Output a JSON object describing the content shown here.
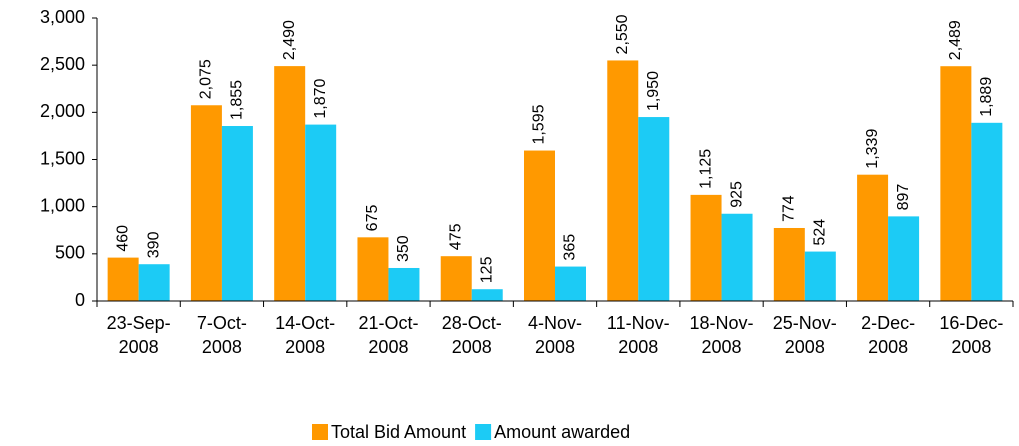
{
  "chart_data": {
    "type": "bar",
    "categories": [
      "23-Sep-2008",
      "7-Oct-2008",
      "14-Oct-2008",
      "21-Oct-2008",
      "28-Oct-2008",
      "4-Nov-2008",
      "11-Nov-2008",
      "18-Nov-2008",
      "25-Nov-2008",
      "2-Dec-2008",
      "16-Dec-2008"
    ],
    "series": [
      {
        "name": "Total Bid Amount",
        "color": "#ff9900",
        "values": [
          460,
          2075,
          2490,
          675,
          475,
          1595,
          2550,
          1125,
          774,
          1339,
          2489
        ],
        "value_labels": [
          "460",
          "2,075",
          "2,490",
          "675",
          "475",
          "1,595",
          "2,550",
          "1,125",
          "774",
          "1,339",
          "2,489"
        ]
      },
      {
        "name": "Amount awarded",
        "color": "#1ccbf5",
        "values": [
          390,
          1855,
          1870,
          350,
          125,
          365,
          1950,
          925,
          524,
          897,
          1889
        ],
        "value_labels": [
          "390",
          "1,855",
          "1,870",
          "350",
          "125",
          "365",
          "1,950",
          "925",
          "524",
          "897",
          "1,889"
        ]
      }
    ],
    "ylim": [
      0,
      3000
    ],
    "yticks": [
      0,
      500,
      {
        "value": 1000,
        "label": "1,000"
      },
      {
        "value": 1500,
        "label": "1,500"
      },
      {
        "value": 2000,
        "label": "2,000"
      },
      {
        "value": 2500,
        "label": "2,500"
      },
      {
        "value": 3000,
        "label": "3,000"
      }
    ],
    "legend": "bottom"
  }
}
